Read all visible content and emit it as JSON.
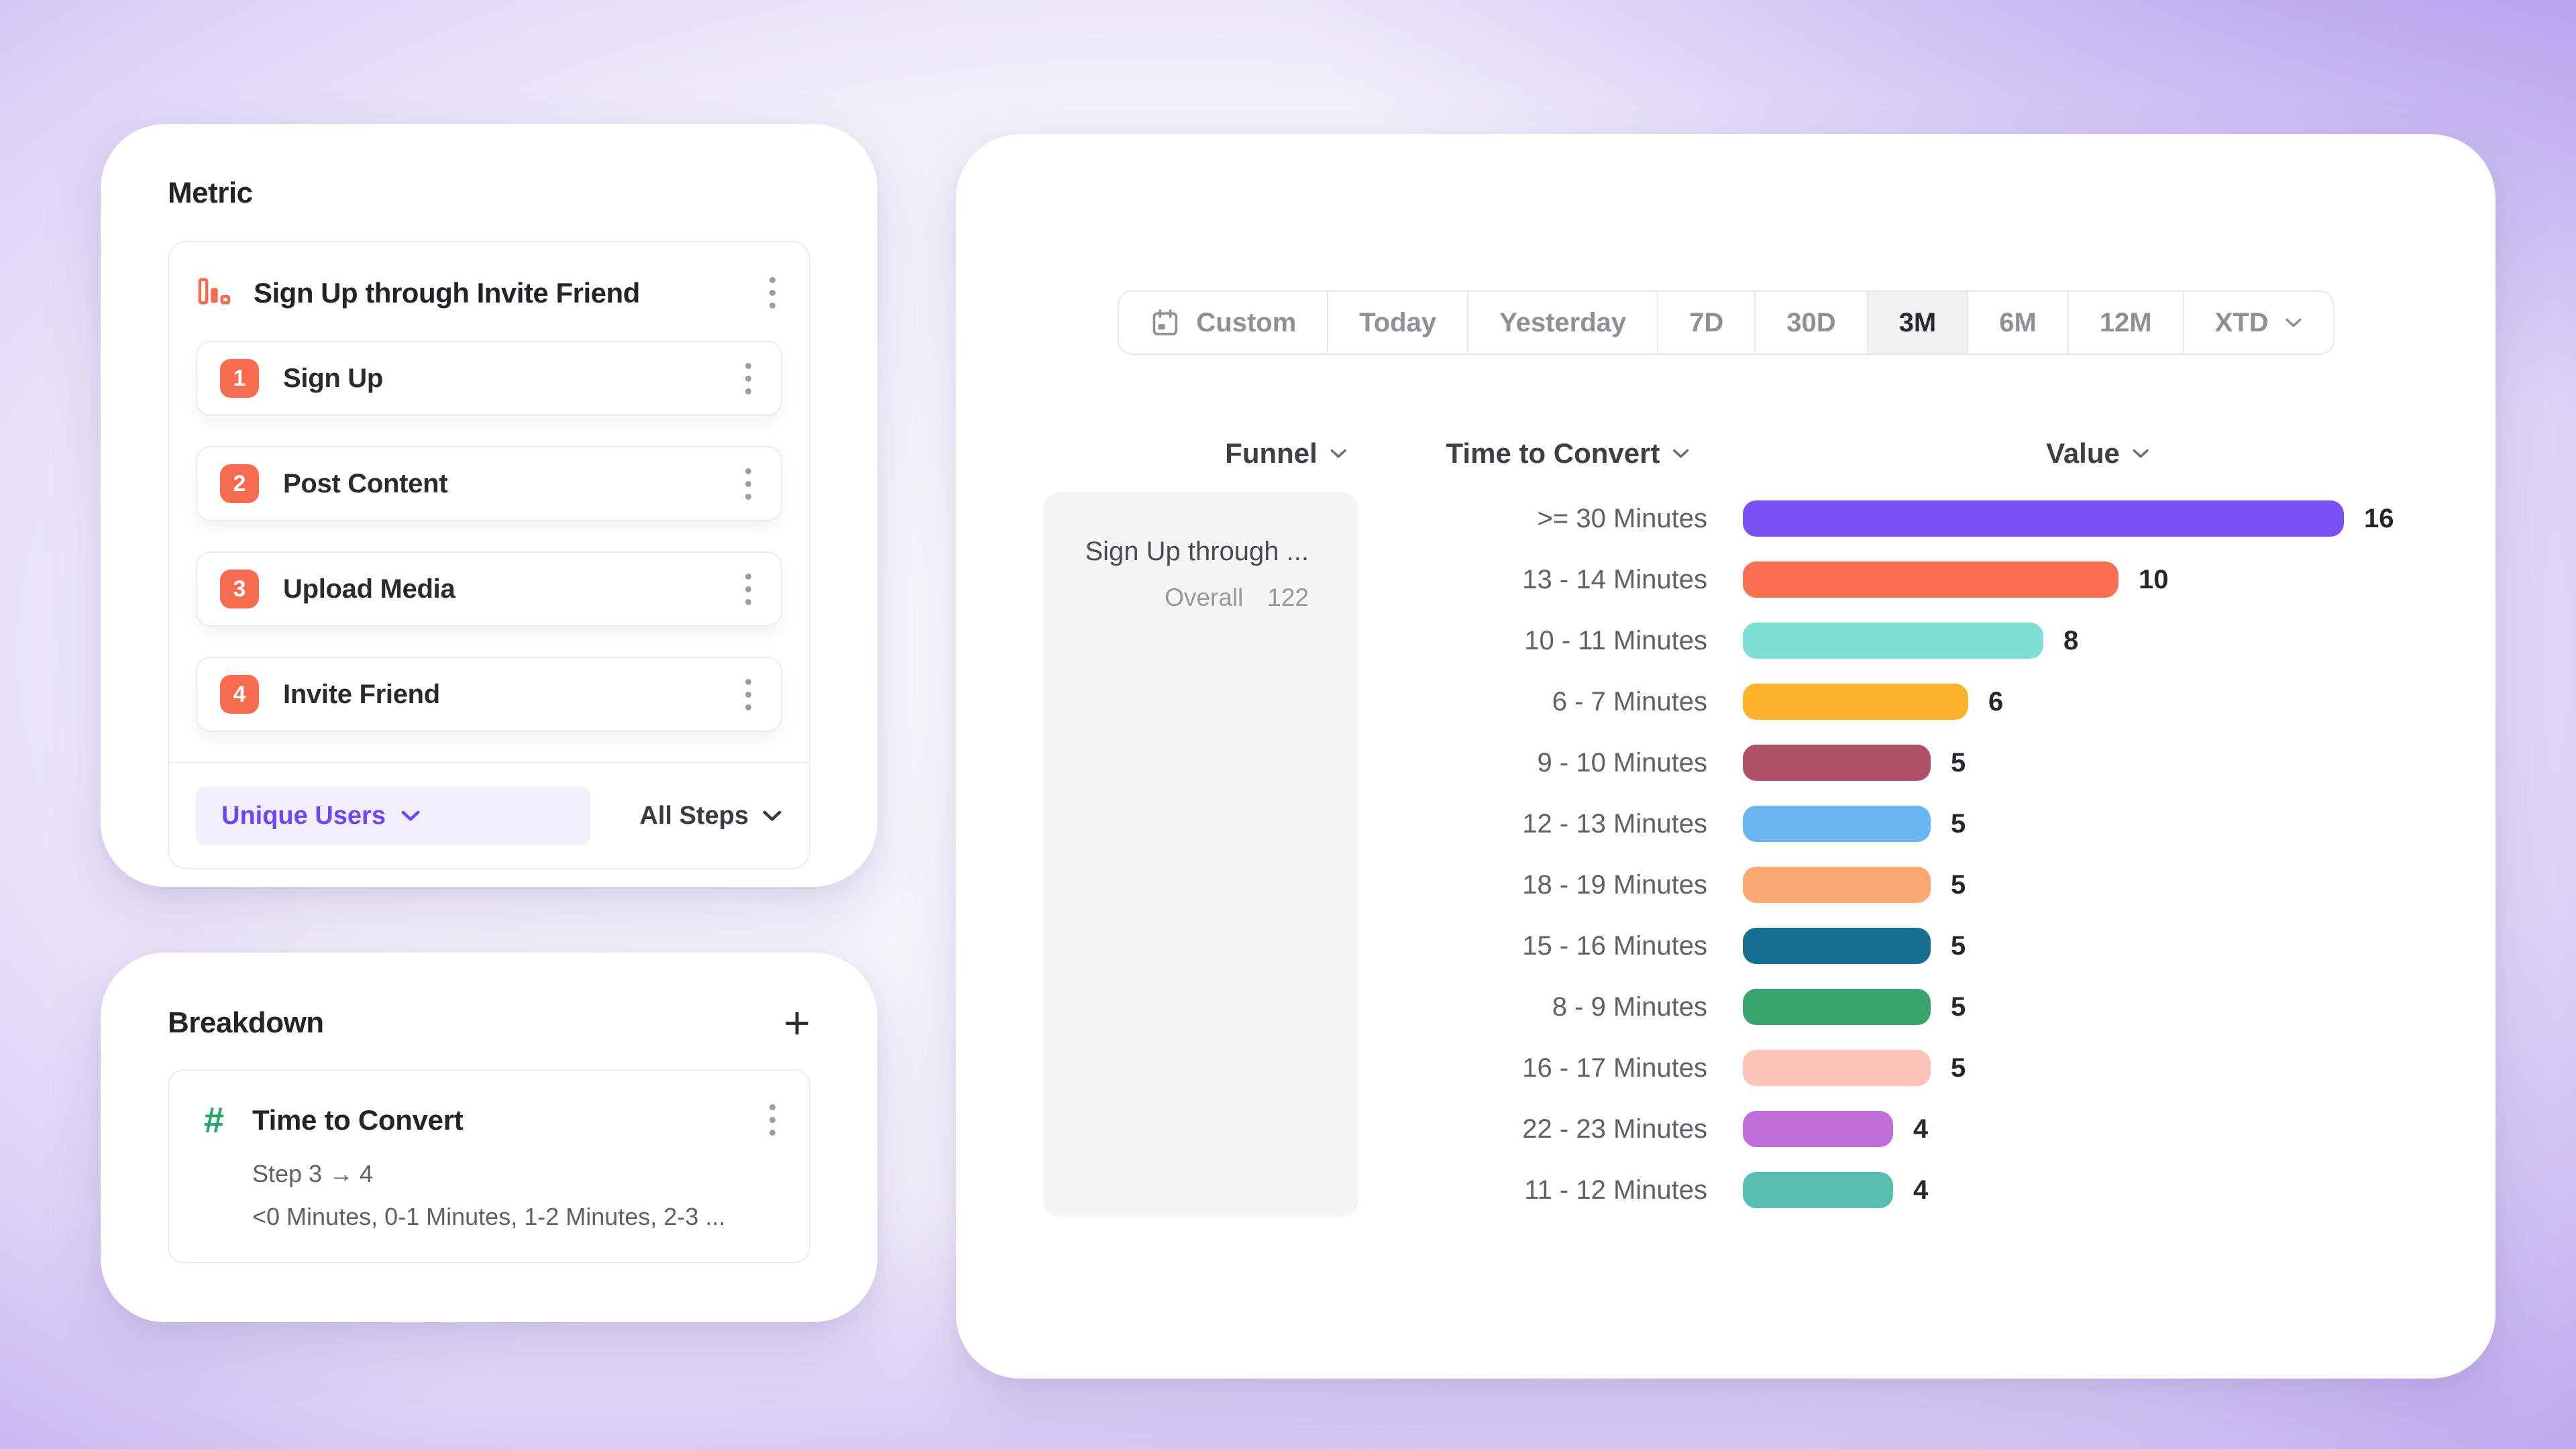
{
  "colors": {
    "accent_orange": "#F76C4E",
    "accent_purple": "#6C47F5",
    "measure_pill_bg": "#F2EEFD",
    "hash_green": "#23A567",
    "selected_range_bg": "#F1F1F4",
    "funnel_cell_bg": "#F5F5F6"
  },
  "metric_panel": {
    "title": "Metric",
    "builder": {
      "icon": "bar-chart-icon",
      "funnel_name": "Sign Up through Invite Friend",
      "steps": [
        {
          "num": "1",
          "label": "Sign Up"
        },
        {
          "num": "2",
          "label": "Post Content"
        },
        {
          "num": "3",
          "label": "Upload Media"
        },
        {
          "num": "4",
          "label": "Invite Friend"
        }
      ],
      "measure_label": "Unique Users",
      "steps_scope_label": "All Steps"
    }
  },
  "breakdown_panel": {
    "title": "Breakdown",
    "add_button": "+",
    "item": {
      "icon": "hash-icon",
      "hash_glyph": "#",
      "title": "Time to Convert",
      "step_range": "Step 3 → 4",
      "buckets_preview": "<0 Minutes, 0-1 Minutes, 1-2 Minutes, 2-3 ..."
    }
  },
  "report_panel": {
    "date_picker": {
      "segments": [
        "Custom",
        "Today",
        "Yesterday",
        "7D",
        "30D",
        "3M",
        "6M",
        "12M",
        "XTD"
      ],
      "selected": "3M"
    },
    "columns": {
      "funnel": "Funnel",
      "time_to_convert": "Time to Convert",
      "value": "Value"
    },
    "funnel_cell": {
      "title": "Sign Up through ...",
      "overall_label": "Overall",
      "overall_value": "122"
    }
  },
  "chart_data": {
    "type": "bar",
    "orientation": "horizontal",
    "categories": [
      ">= 30 Minutes",
      "13 - 14 Minutes",
      "10 - 11 Minutes",
      "6 - 7 Minutes",
      "9 - 10 Minutes",
      "12 - 13 Minutes",
      "18 - 19 Minutes",
      "15 - 16 Minutes",
      "8 - 9 Minutes",
      "16 - 17 Minutes",
      "22 - 23 Minutes",
      "11 - 12 Minutes"
    ],
    "values": [
      16,
      10,
      8,
      6,
      5,
      5,
      5,
      5,
      5,
      5,
      4,
      4
    ],
    "colors": [
      "#7A52F4",
      "#FA6E51",
      "#7EDFD4",
      "#FBB32B",
      "#AE5168",
      "#6AB6F2",
      "#FCA872",
      "#176F90",
      "#36A46C",
      "#FCC3B6",
      "#C06EDB",
      "#58BEB0"
    ],
    "patterned_index": 2,
    "xlim": [
      0,
      16
    ],
    "grid": false,
    "legend": "none"
  }
}
